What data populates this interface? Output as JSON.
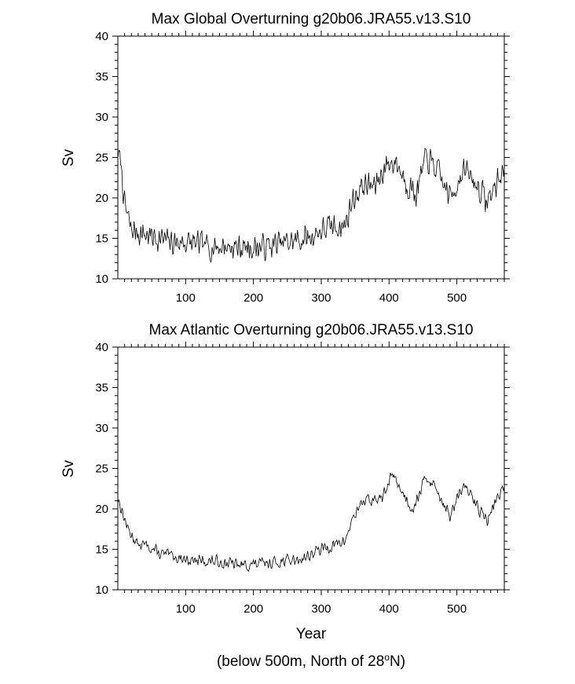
{
  "chart_data": [
    {
      "type": "line",
      "title": "Max Global Overturning g20b06.JRA55.v13.S10",
      "xlabel": "",
      "ylabel": "Sv",
      "xlim": [
        0,
        570
      ],
      "ylim": [
        10,
        40
      ],
      "x_ticks": [
        100,
        200,
        300,
        400,
        500
      ],
      "y_ticks": [
        10,
        15,
        20,
        25,
        30,
        35,
        40
      ],
      "grid": false,
      "anchors": [
        {
          "x": 0,
          "y": 25.5
        },
        {
          "x": 5,
          "y": 24
        },
        {
          "x": 10,
          "y": 19
        },
        {
          "x": 20,
          "y": 16
        },
        {
          "x": 40,
          "y": 15.5
        },
        {
          "x": 60,
          "y": 15
        },
        {
          "x": 80,
          "y": 14.5
        },
        {
          "x": 100,
          "y": 14.5
        },
        {
          "x": 130,
          "y": 14
        },
        {
          "x": 160,
          "y": 14
        },
        {
          "x": 190,
          "y": 13.8
        },
        {
          "x": 220,
          "y": 14
        },
        {
          "x": 250,
          "y": 14.5
        },
        {
          "x": 280,
          "y": 15
        },
        {
          "x": 300,
          "y": 16
        },
        {
          "x": 320,
          "y": 16.5
        },
        {
          "x": 335,
          "y": 16.5
        },
        {
          "x": 345,
          "y": 19.5
        },
        {
          "x": 360,
          "y": 21.5
        },
        {
          "x": 380,
          "y": 21.5
        },
        {
          "x": 395,
          "y": 24
        },
        {
          "x": 410,
          "y": 24.5
        },
        {
          "x": 425,
          "y": 22
        },
        {
          "x": 440,
          "y": 20.5
        },
        {
          "x": 455,
          "y": 25
        },
        {
          "x": 470,
          "y": 23.5
        },
        {
          "x": 490,
          "y": 20
        },
        {
          "x": 510,
          "y": 23.5
        },
        {
          "x": 530,
          "y": 21.5
        },
        {
          "x": 545,
          "y": 19.5
        },
        {
          "x": 560,
          "y": 22
        },
        {
          "x": 570,
          "y": 23.5
        }
      ],
      "noise_amplitude": 2.0,
      "seed": 7
    },
    {
      "type": "line",
      "title": "Max Atlantic Overturning g20b06.JRA55.v13.S10",
      "xlabel": "Year",
      "ylabel": "Sv",
      "xlim": [
        0,
        570
      ],
      "ylim": [
        10,
        40
      ],
      "x_ticks": [
        100,
        200,
        300,
        400,
        500
      ],
      "y_ticks": [
        10,
        15,
        20,
        25,
        30,
        35,
        40
      ],
      "grid": false,
      "anchors": [
        {
          "x": 0,
          "y": 21.5
        },
        {
          "x": 5,
          "y": 20
        },
        {
          "x": 15,
          "y": 17.5
        },
        {
          "x": 30,
          "y": 15.5
        },
        {
          "x": 45,
          "y": 15.5
        },
        {
          "x": 60,
          "y": 14.5
        },
        {
          "x": 90,
          "y": 14
        },
        {
          "x": 120,
          "y": 13.5
        },
        {
          "x": 150,
          "y": 13.5
        },
        {
          "x": 180,
          "y": 13
        },
        {
          "x": 210,
          "y": 13.2
        },
        {
          "x": 240,
          "y": 13.5
        },
        {
          "x": 270,
          "y": 13.8
        },
        {
          "x": 300,
          "y": 15
        },
        {
          "x": 320,
          "y": 15.5
        },
        {
          "x": 335,
          "y": 16
        },
        {
          "x": 345,
          "y": 18.5
        },
        {
          "x": 360,
          "y": 21
        },
        {
          "x": 380,
          "y": 21
        },
        {
          "x": 395,
          "y": 22
        },
        {
          "x": 405,
          "y": 24.5
        },
        {
          "x": 420,
          "y": 22
        },
        {
          "x": 435,
          "y": 20
        },
        {
          "x": 455,
          "y": 24
        },
        {
          "x": 470,
          "y": 22.5
        },
        {
          "x": 490,
          "y": 19
        },
        {
          "x": 510,
          "y": 23
        },
        {
          "x": 525,
          "y": 21
        },
        {
          "x": 545,
          "y": 18.5
        },
        {
          "x": 560,
          "y": 21.5
        },
        {
          "x": 570,
          "y": 22.5
        }
      ],
      "noise_amplitude": 0.9,
      "seed": 13
    }
  ],
  "footnote": {
    "prefix": "(below 500m, North of 28",
    "degree": "o",
    "suffix": "N)"
  }
}
